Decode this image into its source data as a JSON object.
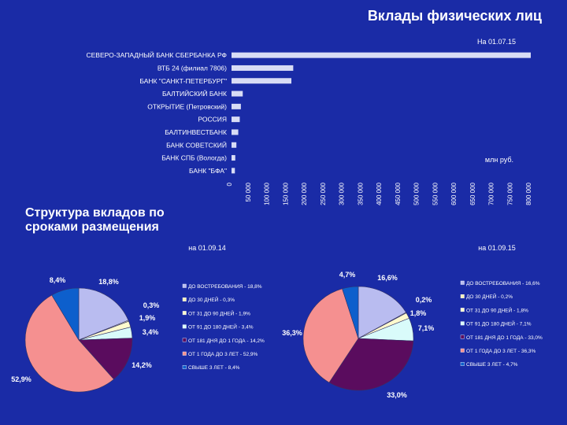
{
  "slide": {
    "title": "Вклады физических лиц",
    "section_title": "Структура вкладов по сроками размещения"
  },
  "colors": {
    "background": "#1a2ba6",
    "bar": "#d8dcf5"
  },
  "chart_data": [
    {
      "type": "bar",
      "orientation": "horizontal",
      "date_label": "На 01.07.15",
      "unit_label": "млн руб.",
      "categories": [
        "СЕВЕРО-ЗАПАДНЫЙ БАНК СБЕРБАНКА РФ",
        "ВТБ 24 (филиал 7806)",
        "БАНК \"САНКТ-ПЕТЕРБУРГ\"",
        "БАЛТИЙСКИЙ БАНК",
        "ОТКРЫТИЕ (Петровский)",
        "РОССИЯ",
        "БАЛТИНВЕСТБАНК",
        "БАНК СОВЕТСКИЙ",
        "БАНК СПБ (Вологда)",
        "БАНК \"БФА\""
      ],
      "values": [
        800000,
        165000,
        160000,
        30000,
        25000,
        22000,
        18000,
        13000,
        10000,
        9000
      ],
      "xlim": [
        0,
        800000
      ],
      "xticks": [
        "0",
        "50 000",
        "100 000",
        "150 000",
        "200 000",
        "250 000",
        "300 000",
        "350 000",
        "400 000",
        "450 000",
        "500 000",
        "550 000",
        "600 000",
        "650 000",
        "700 000",
        "750 000",
        "800 000"
      ]
    },
    {
      "type": "pie",
      "date_label": "на 01.09.14",
      "labels": [
        "ДО ВОСТРЕБОВАНИЯ",
        "ДО 30 ДНЕЙ",
        "ОТ 31 ДО 90 ДНЕЙ",
        "ОТ 91 ДО 180 ДНЕЙ",
        "ОТ 181 ДНЯ ДО 1 ГОДА",
        "ОТ 1 ГОДА ДО 3 ЛЕТ",
        "СВЫШЕ 3 ЛЕТ"
      ],
      "legend": [
        "ДО ВОСТРЕБОВАНИЯ - 18,8%",
        "ДО 30 ДНЕЙ - 0,3%",
        "ОТ 31 ДО 90 ДНЕЙ - 1,9%",
        "ОТ 91 ДО 180 ДНЕЙ - 3,4%",
        "ОТ 181 ДНЯ ДО 1 ГОДА - 14,2%",
        "ОТ 1 ГОДА ДО 3 ЛЕТ - 52,9%",
        "СВЫШЕ 3 ЛЕТ - 8,4%"
      ],
      "values": [
        18.8,
        0.3,
        1.9,
        3.4,
        14.2,
        52.9,
        8.4
      ],
      "value_labels": [
        "18,8%",
        "0,3%",
        "1,9%",
        "3,4%",
        "14,2%",
        "52,9%",
        "8,4%"
      ],
      "colors": [
        "#b9bcf0",
        "#f4f0b8",
        "#fffacd",
        "#d9fbfa",
        "#5a0c5e",
        "#f59090",
        "#0d5fcc"
      ]
    },
    {
      "type": "pie",
      "date_label": "на 01.09.15",
      "labels": [
        "ДО ВОСТРЕБОВАНИЯ",
        "ДО 30 ДНЕЙ",
        "ОТ 31 ДО 90 ДНЕЙ",
        "ОТ 91 ДО 180 ДНЕЙ",
        "ОТ 181 ДНЯ ДО 1 ГОДА",
        "ОТ 1 ГОДА ДО 3 ЛЕТ",
        "СВЫШЕ 3 ЛЕТ"
      ],
      "legend": [
        "ДО ВОСТРЕБОВАНИЯ - 16,6%",
        "ДО 30 ДНЕЙ - 0,2%",
        "ОТ 31 ДО 90 ДНЕЙ - 1,8%",
        "ОТ 91 ДО 180 ДНЕЙ - 7,1%",
        "ОТ 181 ДНЯ ДО 1 ГОДА - 33,0%",
        "ОТ 1 ГОДА ДО 3 ЛЕТ - 36,3%",
        "СВЫШЕ 3 ЛЕТ - 4,7%"
      ],
      "values": [
        16.6,
        0.2,
        1.8,
        7.1,
        33.0,
        36.3,
        4.7
      ],
      "value_labels": [
        "16,6%",
        "0,2%",
        "1,8%",
        "7,1%",
        "33,0%",
        "36,3%",
        "4,7%"
      ],
      "colors": [
        "#b9bcf0",
        "#f4f0b8",
        "#fffacd",
        "#d9fbfa",
        "#5a0c5e",
        "#f59090",
        "#0d5fcc"
      ]
    }
  ]
}
